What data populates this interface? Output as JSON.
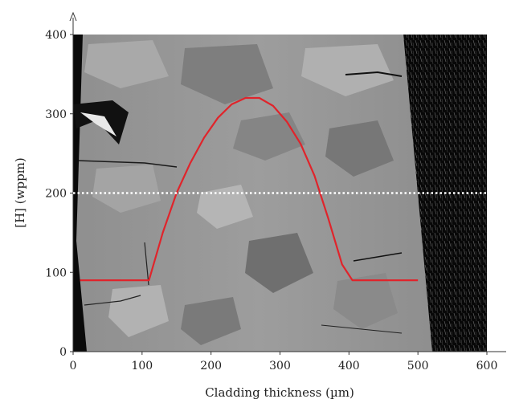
{
  "chart_data": {
    "type": "line",
    "xlabel": "Cladding thickness (µm)",
    "ylabel": "[H] (wppm)",
    "xlim": [
      0,
      600
    ],
    "ylim": [
      0,
      400
    ],
    "x_ticks": [
      "0",
      "100",
      "200",
      "300",
      "400",
      "500",
      "600"
    ],
    "y_ticks": [
      "0",
      "100",
      "200",
      "300",
      "400"
    ],
    "grid": false,
    "legend": "none",
    "background": "grayscale micrograph of cladding cross-section",
    "series": [
      {
        "color": "#e0242b",
        "style": "solid",
        "x": [
          10,
          110,
          130,
          150,
          170,
          190,
          210,
          230,
          250,
          270,
          290,
          310,
          330,
          350,
          370,
          390,
          405,
          500
        ],
        "y": [
          90,
          90,
          150,
          200,
          238,
          270,
          295,
          312,
          320,
          320,
          310,
          290,
          262,
          222,
          168,
          110,
          90,
          90
        ]
      },
      {
        "color": "#ffffff",
        "style": "dotted",
        "x": [
          0,
          600
        ],
        "y": [
          200,
          200
        ]
      }
    ]
  }
}
